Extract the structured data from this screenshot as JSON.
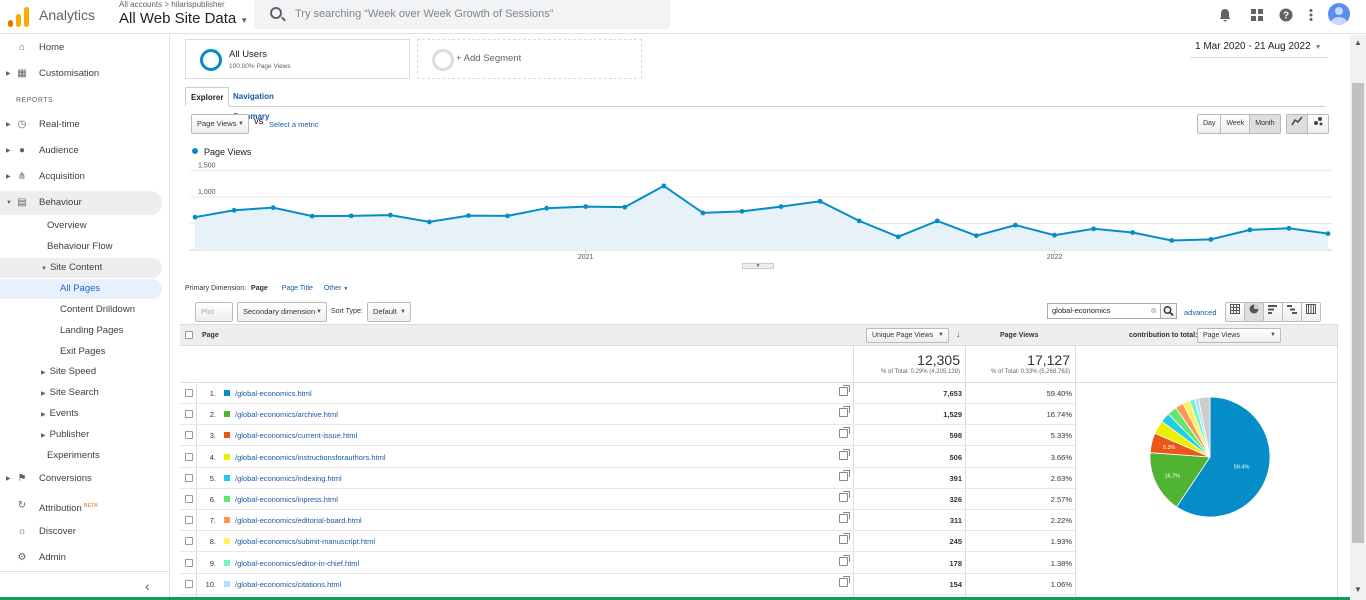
{
  "topbar": {
    "app_name": "Analytics",
    "account_crumb": "All accounts > hilarispublisher",
    "view_name": "All Web Site Data",
    "search_placeholder": "Try searching “Week over Week Growth of Sessions”"
  },
  "sidebar": {
    "top_items": [
      {
        "label": "Home",
        "icon": "home-icon"
      },
      {
        "label": "Customisation",
        "icon": "dashboard-icon"
      }
    ],
    "reports_heading": "REPORTS",
    "report_items": [
      {
        "label": "Real-time",
        "icon": "clock-icon"
      },
      {
        "label": "Audience",
        "icon": "person-icon"
      },
      {
        "label": "Acquisition",
        "icon": "acquisition-icon"
      },
      {
        "label": "Behaviour",
        "icon": "behaviour-icon"
      }
    ],
    "behaviour_sub": {
      "overview": "Overview",
      "flow": "Behaviour Flow",
      "site_content": "Site Content",
      "all_pages": "All Pages",
      "drilldown": "Content Drilldown",
      "landing": "Landing Pages",
      "exit": "Exit Pages",
      "speed": "Site Speed",
      "search": "Site Search",
      "events": "Events",
      "publisher": "Publisher",
      "experiments": "Experiments"
    },
    "bottom_items": {
      "conversions": "Conversions",
      "attribution": "Attribution",
      "attribution_badge": "BETA",
      "discover": "Discover",
      "admin": "Admin"
    }
  },
  "segments": {
    "all_users": "All Users",
    "all_users_sub": "100.00% Page Views",
    "add_segment": "+ Add Segment"
  },
  "date_range": "1 Mar 2020 - 21 Aug 2022",
  "tabs": {
    "explorer": "Explorer",
    "navigation": "Navigation Summary"
  },
  "metric_controls": {
    "metric": "Page Views",
    "vs": "VS",
    "select_metric": "Select a metric",
    "day": "Day",
    "week": "Week",
    "month": "Month"
  },
  "chart_data": {
    "type": "line",
    "series": [
      {
        "name": "Page Views",
        "values": [
          620,
          750,
          800,
          640,
          645,
          660,
          530,
          650,
          645,
          790,
          820,
          810,
          1210,
          700,
          730,
          820,
          920,
          550,
          250,
          550,
          270,
          470,
          280,
          400,
          330,
          180,
          200,
          380,
          410,
          310
        ]
      }
    ],
    "ylim": [
      0,
      1700
    ],
    "yticks": [
      "1,500",
      "1,000",
      "500"
    ],
    "ytick_values": [
      1500,
      1000,
      500
    ],
    "xlabels": [
      {
        "label": "2021",
        "index": 10
      },
      {
        "label": "2022",
        "index": 22
      }
    ],
    "color": "#058dc7",
    "fill": "#e6f2f8"
  },
  "primary_dimension": {
    "label": "Primary Dimension:",
    "page": "Page",
    "page_title": "Page Title",
    "other": "Other"
  },
  "toolbar": {
    "plot_rows": "Plot Rows",
    "secondary": "Secondary dimension",
    "sort_type_label": "Sort Type:",
    "sort_type": "Default",
    "filter_value": "global-economics",
    "advanced": "advanced"
  },
  "table": {
    "headers": {
      "page": "Page",
      "unique": "Unique Page Views",
      "views": "Page Views",
      "contrib_label": "contribution to total:",
      "contrib_select": "Page Views"
    },
    "totals": {
      "unique": "12,305",
      "unique_sub": "% of Total: 0.29% (4,205,139)",
      "views": "17,127",
      "views_sub": "% of Total: 0.33% (5,268,763)"
    },
    "rows": [
      {
        "n": "1.",
        "page": "/global-economics.html",
        "unique": "7,653",
        "pct": "59.40%",
        "color": "#058dc7"
      },
      {
        "n": "2.",
        "page": "/global-economics/archive.html",
        "unique": "1,529",
        "pct": "16.74%",
        "color": "#50b432"
      },
      {
        "n": "3.",
        "page": "/global-economics/current-issue.html",
        "unique": "598",
        "pct": "5.33%",
        "color": "#ed561b"
      },
      {
        "n": "4.",
        "page": "/global-economics/instructionsforauthors.html",
        "unique": "506",
        "pct": "3.66%",
        "color": "#edef00"
      },
      {
        "n": "5.",
        "page": "/global-economics/indexing.html",
        "unique": "391",
        "pct": "2.63%",
        "color": "#24cbe5"
      },
      {
        "n": "6.",
        "page": "/global-economics/inpress.html",
        "unique": "326",
        "pct": "2.57%",
        "color": "#64e572"
      },
      {
        "n": "7.",
        "page": "/global-economics/editorial-board.html",
        "unique": "311",
        "pct": "2.22%",
        "color": "#ff9655"
      },
      {
        "n": "8.",
        "page": "/global-economics/submit-manuscript.html",
        "unique": "245",
        "pct": "1.93%",
        "color": "#fff263"
      },
      {
        "n": "9.",
        "page": "/global-economics/editor-in-chief.html",
        "unique": "178",
        "pct": "1.38%",
        "color": "#6af9c4"
      },
      {
        "n": "10.",
        "page": "/global-economics/citations.html",
        "unique": "154",
        "pct": "1.06%",
        "color": "#b2deff"
      }
    ],
    "pie_other_pct": 3.08,
    "pie_other_color": "#cccccc",
    "pie_labels": [
      "59.4%",
      "16.7%",
      "5.3%"
    ]
  }
}
